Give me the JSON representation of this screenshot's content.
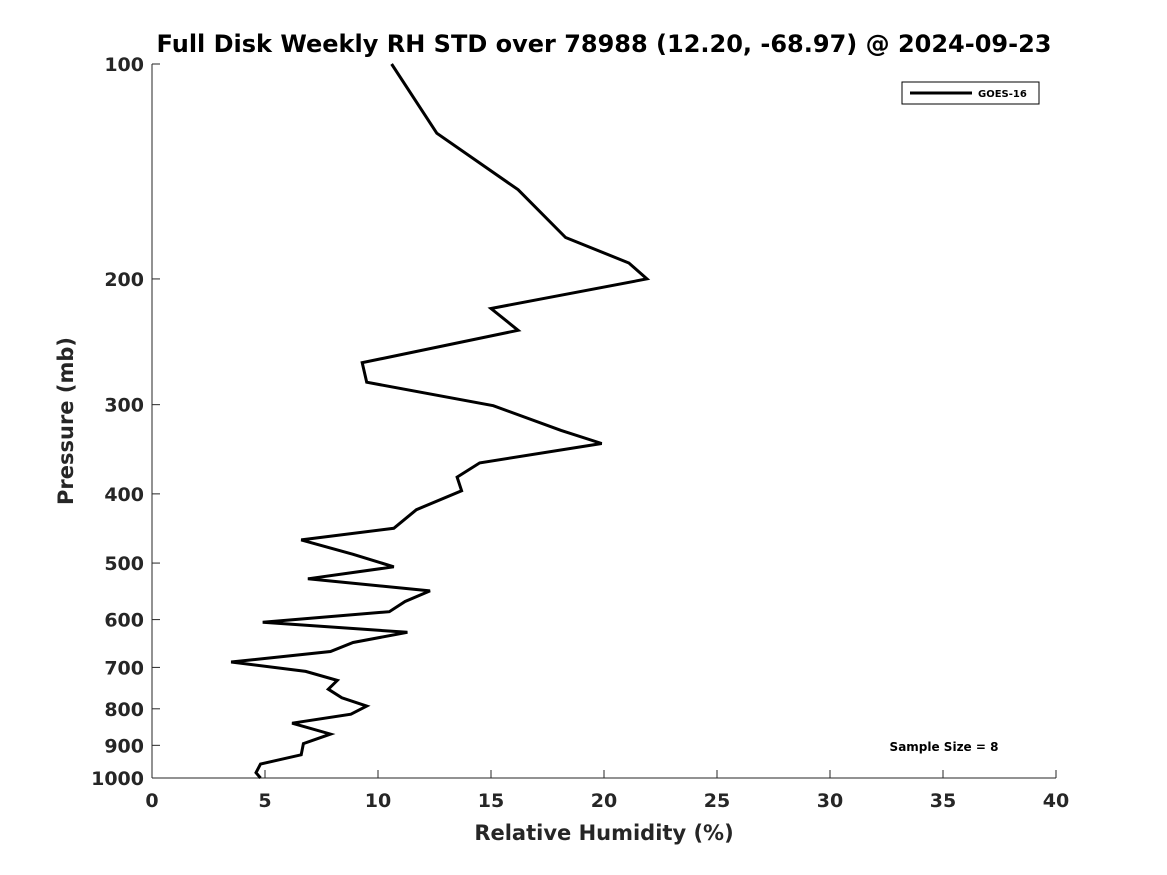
{
  "chart_data": {
    "type": "line",
    "title": "Full Disk Weekly RH STD over 78988 (12.20, -68.97) @ 2024-09-23",
    "xlabel": "Relative Humidity (%)",
    "ylabel": "Pressure (mb)",
    "xlim": [
      0,
      40
    ],
    "ylim": [
      100,
      1000
    ],
    "yscale": "log",
    "y_reversed": true,
    "x_ticks": [
      0,
      5,
      10,
      15,
      20,
      25,
      30,
      35,
      40
    ],
    "y_ticks": [
      100,
      200,
      300,
      400,
      500,
      600,
      700,
      800,
      900,
      1000
    ],
    "grid": false,
    "legend_position": "top-right",
    "annotation": "Sample Size = 8",
    "series": [
      {
        "name": "GOES-16",
        "color": "#000000",
        "points": [
          [
            10.6,
            100
          ],
          [
            12.6,
            125
          ],
          [
            16.2,
            150
          ],
          [
            18.3,
            175
          ],
          [
            21.1,
            190
          ],
          [
            21.9,
            200
          ],
          [
            15.0,
            220
          ],
          [
            16.2,
            236
          ],
          [
            9.3,
            262
          ],
          [
            9.5,
            279
          ],
          [
            15.1,
            301
          ],
          [
            18.1,
            326
          ],
          [
            19.9,
            340
          ],
          [
            14.5,
            362
          ],
          [
            13.5,
            379
          ],
          [
            13.7,
            396
          ],
          [
            11.7,
            421
          ],
          [
            10.7,
            447
          ],
          [
            6.6,
            464
          ],
          [
            8.9,
            486
          ],
          [
            10.7,
            506
          ],
          [
            6.9,
            526
          ],
          [
            12.3,
            547
          ],
          [
            11.2,
            566
          ],
          [
            10.5,
            585
          ],
          [
            4.9,
            605
          ],
          [
            11.3,
            625
          ],
          [
            8.9,
            646
          ],
          [
            7.9,
            665
          ],
          [
            3.5,
            688
          ],
          [
            6.8,
            709
          ],
          [
            8.2,
            730
          ],
          [
            7.8,
            751
          ],
          [
            8.4,
            772
          ],
          [
            9.5,
            793
          ],
          [
            8.8,
            814
          ],
          [
            6.2,
            838
          ],
          [
            7.9,
            868
          ],
          [
            6.7,
            895
          ],
          [
            6.6,
            928
          ],
          [
            4.8,
            956
          ],
          [
            4.6,
            983
          ],
          [
            4.8,
            1000
          ]
        ]
      }
    ]
  }
}
